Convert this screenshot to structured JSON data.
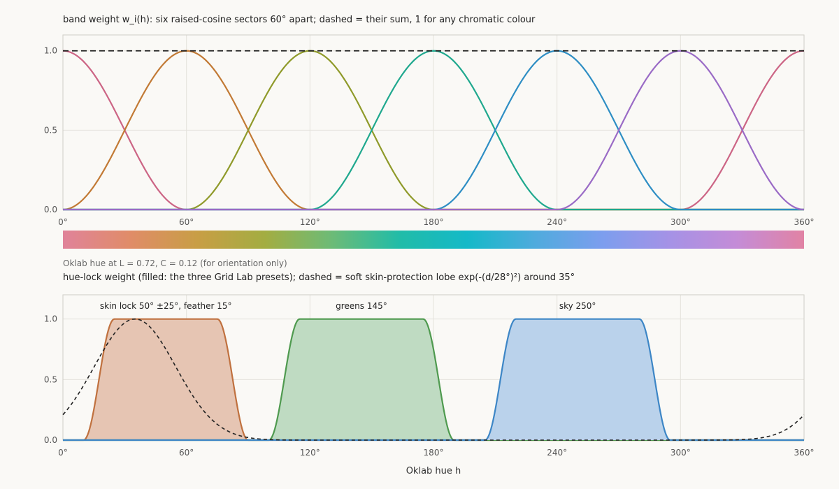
{
  "top_title": "band weight w_i(h): six raised-cosine sectors 60° apart; dashed = their sum, 1 for any chromatic colour",
  "strip_caption": "Oklab hue at L = 0.72, C = 0.12 (for orientation only)",
  "bottom_title": "hue-lock weight (filled: the three Grid Lab presets); dashed = soft skin-protection lobe exp(-(d/28°)²) around 35°",
  "hue_strip_stops": [
    "#e0839a",
    "#e08c68",
    "#c89e45",
    "#a3ad42",
    "#6cbb77",
    "#21bca8",
    "#14b9c8",
    "#4fabdd",
    "#7c9eee",
    "#a592e6",
    "#c48cd7",
    "#e183a4"
  ],
  "chart_data": [
    {
      "type": "line",
      "title": "band weight w_i(h): six raised-cosine sectors 60° apart; dashed = their sum, 1 for any chromatic colour",
      "xlim": [
        0,
        360
      ],
      "ylim": [
        0,
        1.1
      ],
      "xticks": [
        0,
        60,
        120,
        180,
        240,
        300,
        360
      ],
      "xtick_labels": [
        "0°",
        "60°",
        "120°",
        "180°",
        "240°",
        "300°",
        "360°"
      ],
      "yticks": [
        0,
        0.5,
        1
      ],
      "ytick_labels": [
        "0.0",
        "0.5",
        "1.0"
      ],
      "grid": true,
      "series": [
        {
          "center": 0,
          "halfwidth": 60,
          "color": "#cc6585",
          "values_at_0_30_60_90_120_180_240_300_330_360": [
            1,
            0.5,
            0,
            0,
            0,
            0,
            0,
            0,
            0.5,
            1
          ]
        },
        {
          "center": 60,
          "halfwidth": 60,
          "color": "#c27a35",
          "values_at_0_30_60_90_120_180_240_300_330_360": [
            0,
            0.5,
            1,
            0.5,
            0,
            0,
            0,
            0,
            0,
            0
          ]
        },
        {
          "center": 120,
          "halfwidth": 60,
          "color": "#8f9a2a",
          "values_at_0_30_60_90_120_180_240_300_330_360": [
            0,
            0,
            0,
            0.5,
            1,
            0,
            0,
            0,
            0,
            0
          ]
        },
        {
          "center": 180,
          "halfwidth": 60,
          "color": "#1fa88e",
          "values_at_0_30_60_90_120_180_240_300_330_360": [
            0,
            0,
            0,
            0,
            0,
            1,
            0,
            0,
            0,
            0
          ]
        },
        {
          "center": 240,
          "halfwidth": 60,
          "color": "#2e8ec4",
          "values_at_0_30_60_90_120_180_240_300_330_360": [
            0,
            0,
            0,
            0,
            0,
            0,
            1,
            0,
            0,
            0
          ]
        },
        {
          "center": 300,
          "halfwidth": 60,
          "color": "#9a6bc6",
          "values_at_0_30_60_90_120_180_240_300_330_360": [
            0,
            0,
            0,
            0,
            0,
            0,
            0,
            1,
            0.5,
            0
          ]
        },
        {
          "dashed": true,
          "color": "#222222",
          "values_at_0_30_60_90_120_180_240_300_330_360": [
            1,
            1,
            1,
            1,
            1,
            1,
            1,
            1,
            1,
            1
          ]
        }
      ]
    },
    {
      "type": "area",
      "title": "hue-lock weight (filled: the three Grid Lab presets); dashed = soft skin-protection lobe exp(-(d/28°)²) around 35°",
      "xlabel": "Oklab hue h",
      "xlim": [
        0,
        360
      ],
      "ylim": [
        0,
        1.2
      ],
      "xticks": [
        0,
        60,
        120,
        180,
        240,
        300,
        360
      ],
      "xtick_labels": [
        "0°",
        "60°",
        "120°",
        "180°",
        "240°",
        "300°",
        "360°"
      ],
      "yticks": [
        0,
        0.5,
        1
      ],
      "ytick_labels": [
        "0.0",
        "0.5",
        "1.0"
      ],
      "grid": true,
      "series": [
        {
          "name": "skin lock 50° ±25°, feather 15°",
          "center": 50,
          "halfwidth": 25,
          "feather": 15,
          "color": "#c0713f",
          "fill": "#e6c5b3"
        },
        {
          "name": "greens 145°",
          "center": 145,
          "halfwidth": 30,
          "feather": 15,
          "color": "#4f9a4f",
          "fill": "#bfdbc2"
        },
        {
          "name": "sky 250°",
          "center": 250,
          "halfwidth": 30,
          "feather": 15,
          "color": "#3d86c6",
          "fill": "#bad2eb"
        },
        {
          "dashed": true,
          "center": 35,
          "sigma": 28,
          "color": "#222222",
          "values_at_0_35_70_100_300_360": [
            0.21,
            1,
            0.21,
            0.005,
            0.0,
            0.21
          ]
        }
      ]
    }
  ]
}
